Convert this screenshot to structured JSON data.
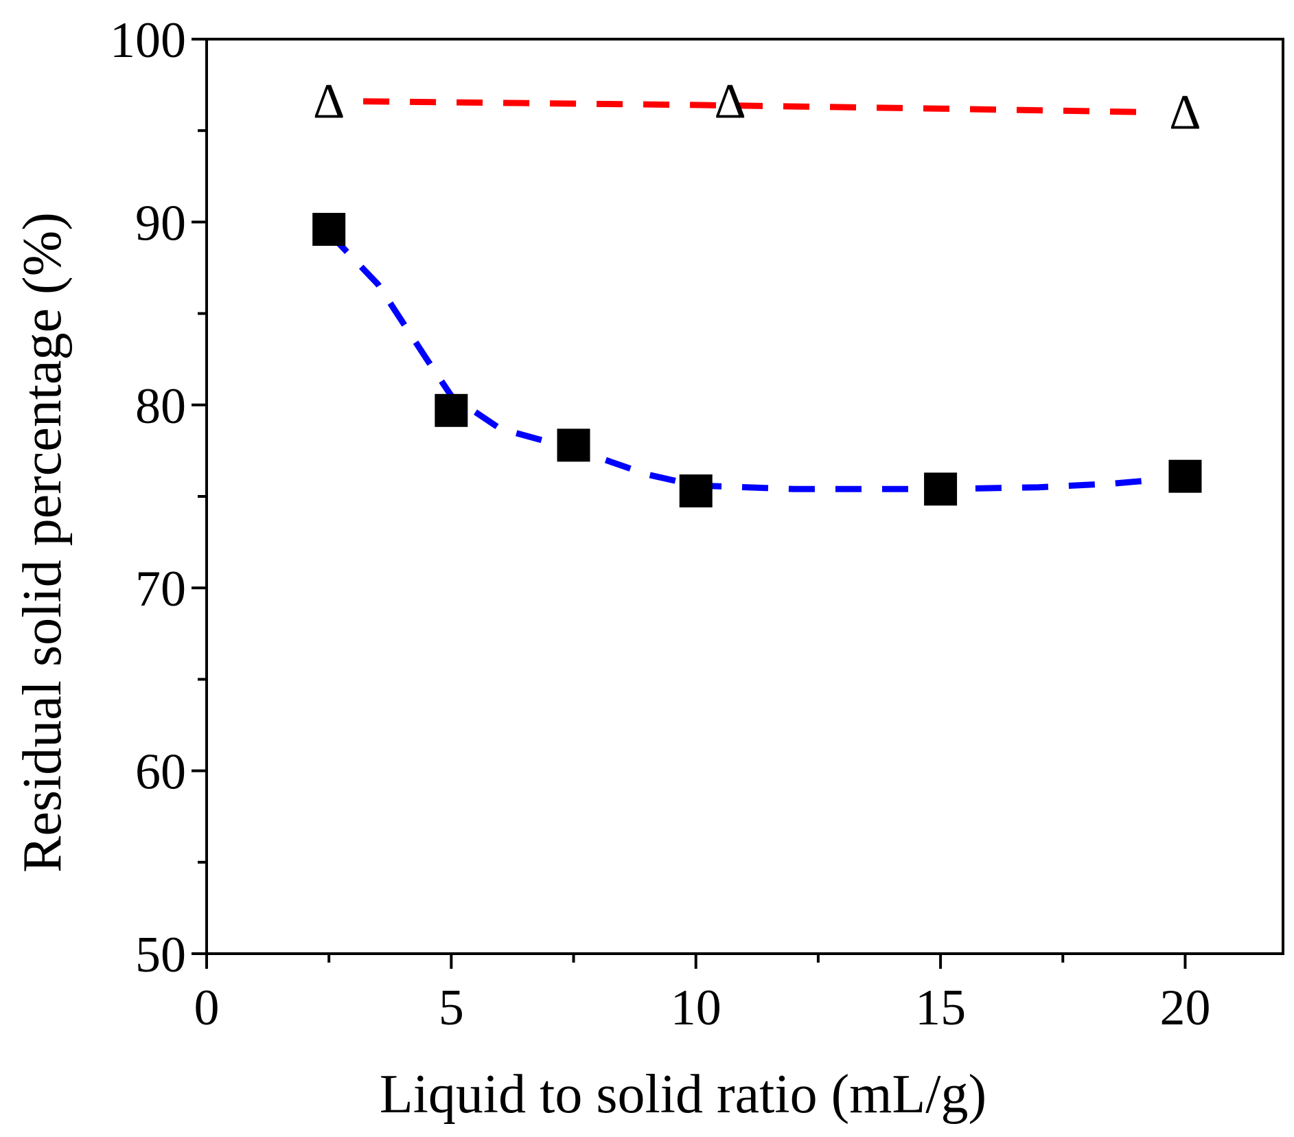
{
  "chart_data": {
    "type": "scatter",
    "title": "",
    "xlabel": "Liquid to solid ratio (mL/g)",
    "ylabel": "Residual solid percentage (%)",
    "xlim": [
      0,
      22
    ],
    "ylim": [
      50,
      100
    ],
    "x_ticks": [
      0,
      5,
      10,
      15,
      20
    ],
    "x_minor_ticks": [
      2.5,
      7.5,
      12.5,
      17.5
    ],
    "y_ticks": [
      50,
      60,
      70,
      80,
      90,
      100
    ],
    "y_minor_ticks": [
      55,
      65,
      75,
      85,
      95
    ],
    "grid": false,
    "legend": "none",
    "series": [
      {
        "name": "triangles",
        "marker": "Δ",
        "marker_style": "open-triangle-glyph",
        "color": "#000000",
        "points": [
          {
            "x": 2.5,
            "y": 96.6
          },
          {
            "x": 10.7,
            "y": 96.6
          },
          {
            "x": 20,
            "y": 96.0
          }
        ],
        "fit": {
          "color": "#ff0000",
          "style": "dashed",
          "points": [
            {
              "x": 3.2,
              "y": 96.6
            },
            {
              "x": 10,
              "y": 96.4
            },
            {
              "x": 15,
              "y": 96.2
            },
            {
              "x": 19.4,
              "y": 96.0
            }
          ]
        }
      },
      {
        "name": "squares",
        "marker": "filled-square",
        "color": "#000000",
        "points": [
          {
            "x": 2.5,
            "y": 89.6
          },
          {
            "x": 5,
            "y": 79.7
          },
          {
            "x": 7.5,
            "y": 77.8
          },
          {
            "x": 10,
            "y": 75.3
          },
          {
            "x": 15,
            "y": 75.4
          },
          {
            "x": 20,
            "y": 76.1
          }
        ],
        "fit": {
          "color": "#0000ff",
          "style": "dashed",
          "points": [
            {
              "x": 2.5,
              "y": 89.4
            },
            {
              "x": 3.5,
              "y": 86.6
            },
            {
              "x": 4.5,
              "y": 82.5
            },
            {
              "x": 5,
              "y": 80.5
            },
            {
              "x": 6,
              "y": 78.7
            },
            {
              "x": 7.5,
              "y": 77.6
            },
            {
              "x": 9,
              "y": 76.2
            },
            {
              "x": 10,
              "y": 75.6
            },
            {
              "x": 12,
              "y": 75.4
            },
            {
              "x": 15,
              "y": 75.4
            },
            {
              "x": 17,
              "y": 75.5
            },
            {
              "x": 18.5,
              "y": 75.7
            },
            {
              "x": 19.4,
              "y": 75.9
            }
          ]
        }
      }
    ]
  }
}
